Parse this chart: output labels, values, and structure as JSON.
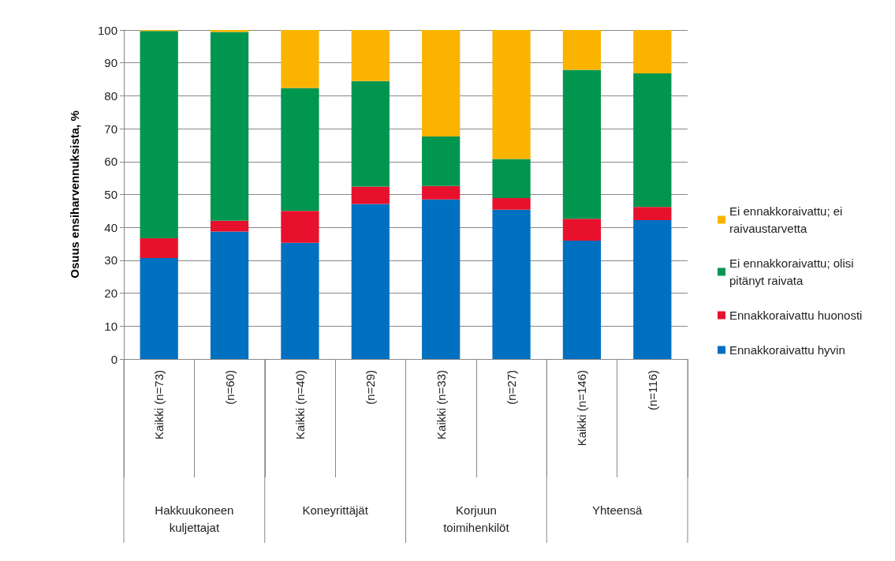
{
  "chart_data": {
    "type": "bar",
    "stacked": true,
    "ylabel": "Osuus ensiharvennuksista, %",
    "categories": [
      "Kaikki (n=73)",
      "(n=60)",
      "Kaikki (n=40)",
      "(n=29)",
      "Kaikki (n=33)",
      "(n=27)",
      "Kaikki (n=146)",
      "(n=116)"
    ],
    "series": [
      {
        "name": "Ennakkoraivattu hyvin",
        "color": "#0070c0",
        "values": [
          30.7,
          38.7,
          35.3,
          47.1,
          48.5,
          45.4,
          36.0,
          42.2
        ]
      },
      {
        "name": "Ennakkoraivattu huonosti",
        "color": "#e8112d",
        "values": [
          6.0,
          3.3,
          9.7,
          5.3,
          4.1,
          3.5,
          6.6,
          4.0
        ]
      },
      {
        "name": "Ei ennakkoraivattu; olisi pitänyt raivata",
        "color": "#00964f",
        "values": [
          63.0,
          57.4,
          37.4,
          32.1,
          15.0,
          11.9,
          45.3,
          40.6
        ]
      },
      {
        "name": "Ei ennakkoraivattu; ei raivaustarvetta",
        "color": "#fab400",
        "values": [
          0.3,
          0.6,
          17.6,
          15.5,
          32.4,
          39.2,
          12.1,
          13.2
        ]
      }
    ],
    "ylim": [
      0,
      100
    ],
    "yticks": [
      0,
      10,
      20,
      30,
      40,
      50,
      60,
      70,
      80,
      90,
      100
    ],
    "grid": "y",
    "legend": "right",
    "annotations": [
      "Hakkuukoneen\nkuljettajat",
      "Koneyrittäjät",
      "Korjuun\ntoimihenkilöt",
      "Yhteensä"
    ]
  }
}
